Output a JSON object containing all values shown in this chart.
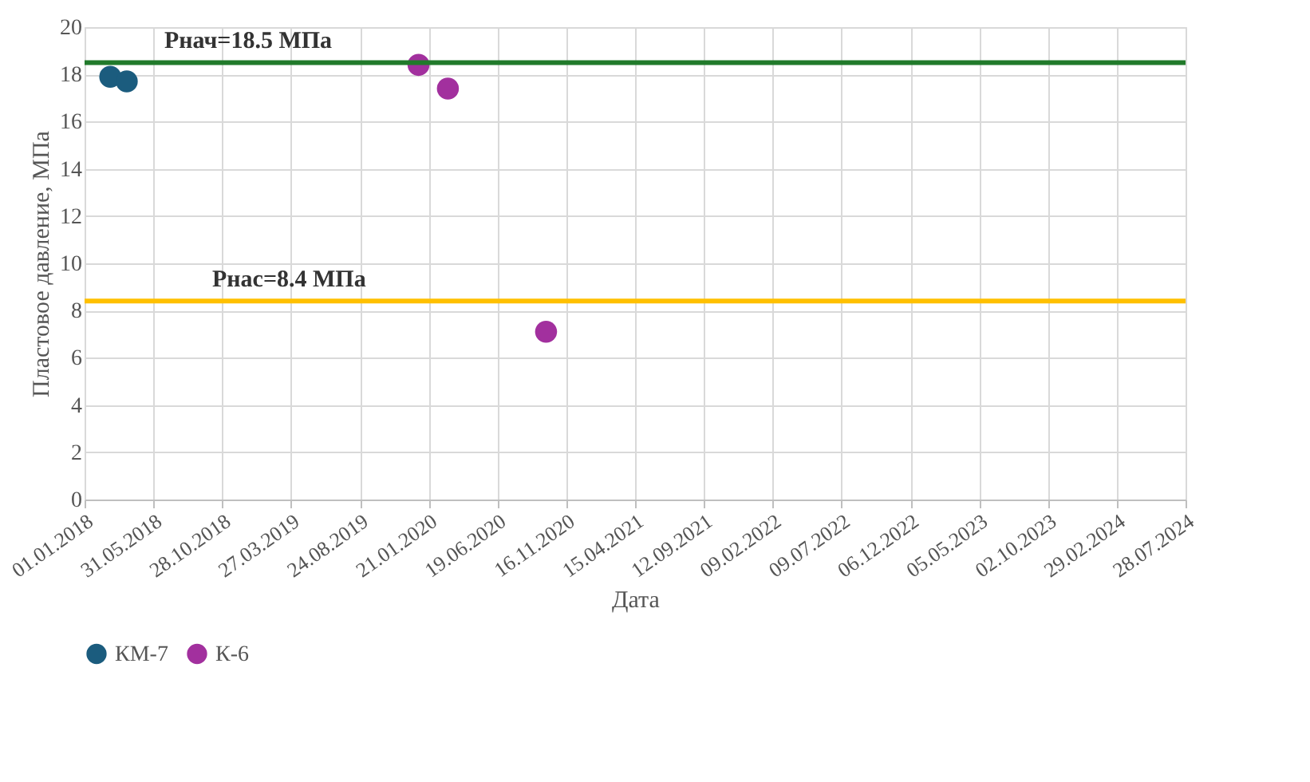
{
  "chart_data": {
    "type": "scatter",
    "xlabel": "Дата",
    "ylabel": "Пластовое давление, МПа",
    "series": [
      {
        "name": "КМ-7",
        "color": "#1b5c7e",
        "x": [
          "2018-02-26",
          "2018-04-03"
        ],
        "values": [
          17.9,
          17.7
        ]
      },
      {
        "name": "К-6",
        "color": "#a2309e",
        "x": [
          "2019-12-30",
          "2020-03-03",
          "2020-10-03"
        ],
        "values": [
          18.4,
          17.4,
          7.1
        ]
      }
    ],
    "marker": "circle",
    "xlim": [
      "2018-01-01",
      "2024-07-28"
    ],
    "xticks": [
      {
        "value": "2018-01-01",
        "label": "01.01.2018"
      },
      {
        "value": "2018-05-31",
        "label": "31.05.2018"
      },
      {
        "value": "2018-10-28",
        "label": "28.10.2018"
      },
      {
        "value": "2019-03-27",
        "label": "27.03.2019"
      },
      {
        "value": "2019-08-24",
        "label": "24.08.2019"
      },
      {
        "value": "2020-01-21",
        "label": "21.01.2020"
      },
      {
        "value": "2020-06-19",
        "label": "19.06.2020"
      },
      {
        "value": "2020-11-16",
        "label": "16.11.2020"
      },
      {
        "value": "2021-04-15",
        "label": "15.04.2021"
      },
      {
        "value": "2021-09-12",
        "label": "12.09.2021"
      },
      {
        "value": "2022-02-09",
        "label": "09.02.2022"
      },
      {
        "value": "2022-07-09",
        "label": "09.07.2022"
      },
      {
        "value": "2022-12-06",
        "label": "06.12.2022"
      },
      {
        "value": "2023-05-05",
        "label": "05.05.2023"
      },
      {
        "value": "2023-10-02",
        "label": "02.10.2023"
      },
      {
        "value": "2024-02-29",
        "label": "29.02.2024"
      },
      {
        "value": "2024-07-28",
        "label": "28.07.2024"
      }
    ],
    "ylim": [
      0,
      20
    ],
    "yticks": [
      0,
      2,
      4,
      6,
      8,
      10,
      12,
      14,
      16,
      18,
      20
    ],
    "ref_lines": [
      {
        "axis": "y",
        "value": 18.5,
        "label": "Рнач=18.5 МПа",
        "color": "#217a2b"
      },
      {
        "axis": "y",
        "value": 8.4,
        "label": "Рнас=8.4 МПа",
        "color": "#ffc000"
      }
    ],
    "grid": true,
    "legend": "bottom"
  }
}
